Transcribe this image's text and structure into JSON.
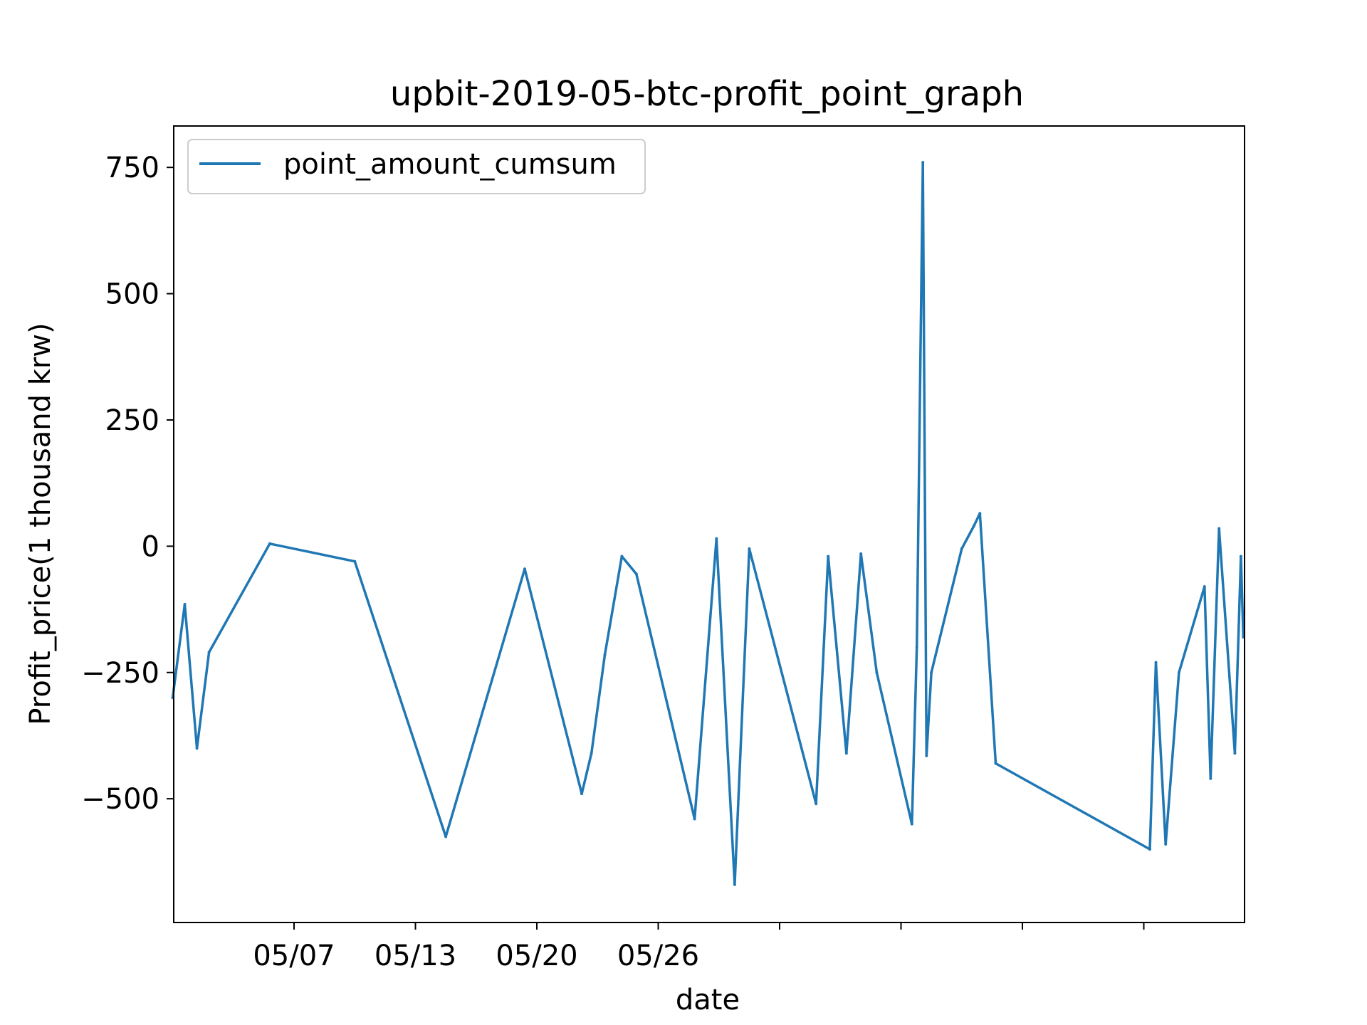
{
  "chart_data": {
    "type": "line",
    "title": "upbit-2019-05-btc-profit_point_graph",
    "xlabel": "date",
    "ylabel": "Profit_price(1 thousand krw)",
    "ylim": [
      -745,
      832
    ],
    "yticks": [
      750,
      500,
      250,
      0,
      -250,
      -500
    ],
    "ytick_labels": [
      "750",
      "500",
      "250",
      "0",
      "−250",
      "−500"
    ],
    "xticks": [
      {
        "index": 1,
        "label": "05/07"
      },
      {
        "index": 2,
        "label": "05/13"
      },
      {
        "index": 3,
        "label": "05/20"
      },
      {
        "index": 4,
        "label": "05/26"
      },
      {
        "index": 5,
        "label": ""
      },
      {
        "index": 6,
        "label": ""
      },
      {
        "index": 7,
        "label": ""
      },
      {
        "index": 8,
        "label": ""
      }
    ],
    "x_tick_period": 1.0,
    "x_range": [
      0.0,
      8.82
    ],
    "grid": false,
    "legend": {
      "position": "top-left"
    },
    "color": "#1f77b4",
    "series": [
      {
        "name": "point_amount_cumsum",
        "x": [
          0.0,
          0.1,
          0.2,
          0.3,
          0.8,
          1.5,
          2.25,
          2.9,
          3.37,
          3.45,
          3.56,
          3.7,
          3.82,
          4.3,
          4.48,
          4.63,
          4.75,
          5.3,
          5.4,
          5.55,
          5.67,
          5.8,
          6.09,
          6.13,
          6.18,
          6.21,
          6.25,
          6.5,
          6.6,
          6.65,
          6.78,
          8.05,
          8.1,
          8.18,
          8.29,
          8.5,
          8.55,
          8.62,
          8.75,
          8.8,
          8.82
        ],
        "y": [
          -300,
          -115,
          -400,
          -210,
          5,
          -30,
          -575,
          -45,
          -490,
          -410,
          -215,
          -20,
          -55,
          -540,
          15,
          -670,
          -5,
          -510,
          -20,
          -410,
          -15,
          -250,
          -550,
          -200,
          760,
          -415,
          -250,
          -5,
          40,
          65,
          -430,
          -600,
          -230,
          -590,
          -250,
          -80,
          -460,
          35,
          -410,
          -20,
          -180
        ]
      }
    ]
  }
}
